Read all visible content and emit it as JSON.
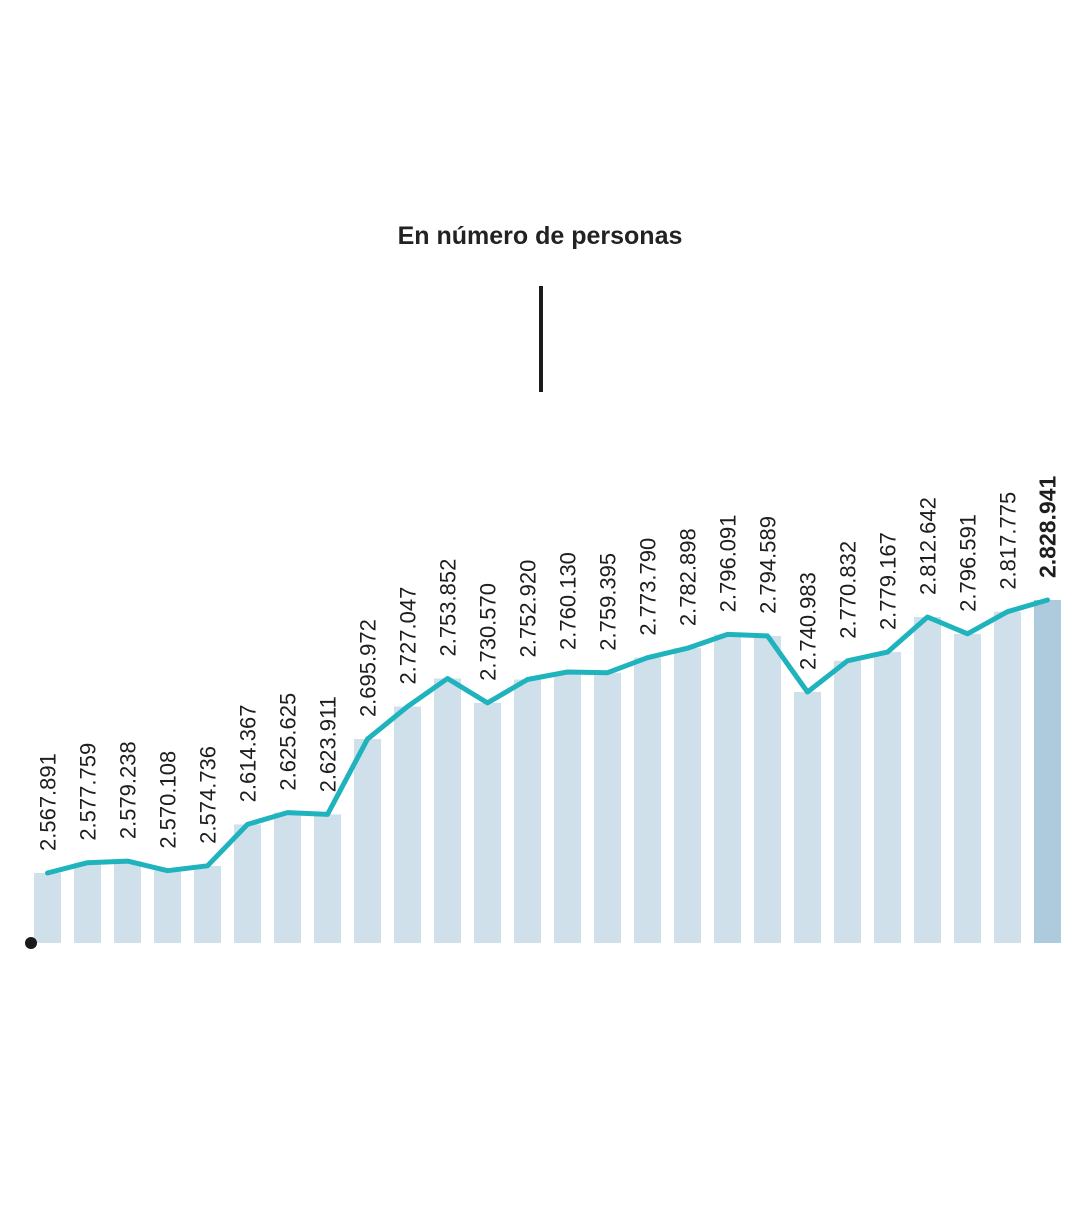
{
  "chart_data": {
    "type": "bar",
    "title": "En número de personas",
    "xlabel": "",
    "ylabel": "",
    "ylim": [
      2500000,
      2850000
    ],
    "bar_color": "#cfe0eb",
    "highlight_bar_color": "#aecbdd",
    "line_color": "#1fb3bd",
    "values": [
      2567891,
      2577759,
      2579238,
      2570108,
      2574736,
      2614367,
      2625625,
      2623911,
      2695972,
      2727047,
      2753852,
      2730570,
      2752920,
      2760130,
      2759395,
      2773790,
      2782898,
      2796091,
      2794589,
      2740983,
      2770832,
      2779167,
      2812642,
      2796591,
      2817775,
      2828941
    ],
    "value_labels": [
      "2.567.891",
      "2.577.759",
      "2.579.238",
      "2.570.108",
      "2.574.736",
      "2.614.367",
      "2.625.625",
      "2.623.911",
      "2.695.972",
      "2.727.047",
      "2.753.852",
      "2.730.570",
      "2.752.920",
      "2.760.130",
      "2.759.395",
      "2.773.790",
      "2.782.898",
      "2.796.091",
      "2.794.589",
      "2.740.983",
      "2.770.832",
      "2.779.167",
      "2.812.642",
      "2.796.591",
      "2.817.775",
      "2.828.941"
    ]
  }
}
